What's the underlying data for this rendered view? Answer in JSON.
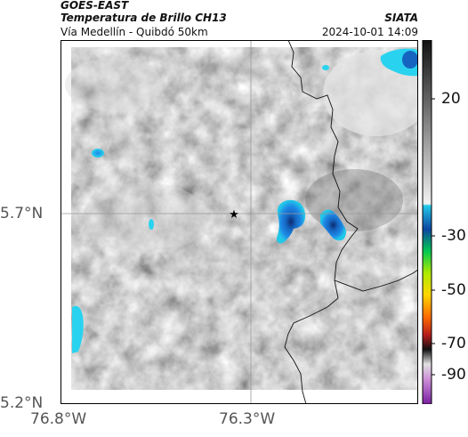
{
  "header": {
    "title": "GOES-EAST",
    "subtitle": "Temperatura de Brillo CH13",
    "region": "Vía Medellín - Quibdó 50km",
    "brand": "SIATA",
    "timestamp": "2024-10-01 14:09"
  },
  "axes": {
    "lat_labels": [
      "5.7°N",
      "5.2°N"
    ],
    "lon_labels": [
      "76.8°W",
      "76.3°W"
    ]
  },
  "colorbar": {
    "labels": [
      "20",
      "-30",
      "-50",
      "-70",
      "-90"
    ],
    "unit": ""
  },
  "map": {
    "marker_icon": "star-icon",
    "colors": {
      "cold_cyan": "#22c8e8",
      "cold_blue": "#1565c0",
      "frame": "#000000"
    }
  }
}
